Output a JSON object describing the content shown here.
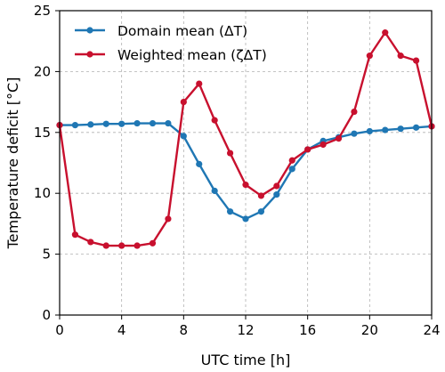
{
  "chart_data": {
    "type": "line",
    "xlabel": "UTC time [h]",
    "ylabel": "Temperature deficit [°C]",
    "xlim": [
      0,
      24
    ],
    "ylim": [
      0,
      25
    ],
    "xticks": [
      0,
      4,
      8,
      12,
      16,
      20,
      24
    ],
    "yticks": [
      0,
      5,
      10,
      15,
      20,
      25
    ],
    "xtick_labels": [
      "0",
      "4",
      "8",
      "12",
      "16",
      "20",
      "24"
    ],
    "ytick_labels": [
      "0",
      "5",
      "10",
      "15",
      "20",
      "25"
    ],
    "grid": true,
    "legend_position": "top-left",
    "x": [
      0,
      1,
      2,
      3,
      4,
      5,
      6,
      7,
      8,
      9,
      10,
      11,
      12,
      13,
      14,
      15,
      16,
      17,
      18,
      19,
      20,
      21,
      22,
      23,
      24
    ],
    "series": [
      {
        "name": "Domain mean (ΔT)",
        "color": "#1f77b4",
        "values": [
          15.6,
          15.6,
          15.65,
          15.7,
          15.7,
          15.75,
          15.75,
          15.75,
          14.7,
          12.4,
          10.2,
          8.5,
          7.9,
          8.5,
          9.9,
          12.0,
          13.6,
          14.3,
          14.6,
          14.9,
          15.1,
          15.2,
          15.3,
          15.4,
          15.5
        ]
      },
      {
        "name": "Weighted mean (ζΔT)",
        "color": "#c8102e",
        "values": [
          15.6,
          6.6,
          6.0,
          5.7,
          5.7,
          5.7,
          5.9,
          7.9,
          17.5,
          19.0,
          16.0,
          13.3,
          10.7,
          9.8,
          10.6,
          12.7,
          13.6,
          14.0,
          14.5,
          16.7,
          21.3,
          23.2,
          21.3,
          20.9,
          15.5
        ]
      }
    ]
  }
}
